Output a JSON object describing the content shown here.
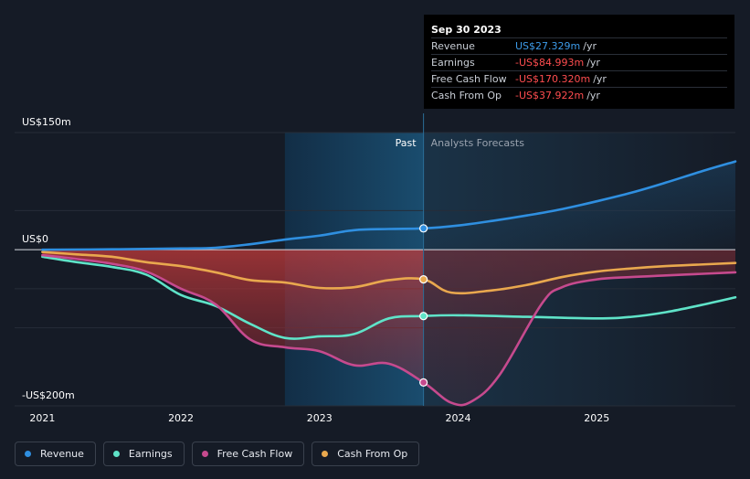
{
  "tooltip": {
    "date": "Sep 30 2023",
    "rows": [
      {
        "label": "Revenue",
        "value": "US$27.329m",
        "unit": "/yr",
        "color": "#3d9be9"
      },
      {
        "label": "Earnings",
        "value": "-US$84.993m",
        "unit": "/yr",
        "color": "#ff4d4f"
      },
      {
        "label": "Free Cash Flow",
        "value": "-US$170.320m",
        "unit": "/yr",
        "color": "#ff4d4f"
      },
      {
        "label": "Cash From Op",
        "value": "-US$37.922m",
        "unit": "/yr",
        "color": "#ff4d4f"
      }
    ]
  },
  "legend": [
    {
      "label": "Revenue",
      "color": "#2f8fe0"
    },
    {
      "label": "Earnings",
      "color": "#5fe3c8"
    },
    {
      "label": "Free Cash Flow",
      "color": "#c64a8e"
    },
    {
      "label": "Cash From Op",
      "color": "#e9a84e"
    }
  ],
  "chart_data": {
    "type": "line",
    "title": "",
    "xlabel": "",
    "ylabel": "",
    "x_ticks": [
      {
        "label": "2021",
        "x": 2021.0
      },
      {
        "label": "2022",
        "x": 2022.0
      },
      {
        "label": "2023",
        "x": 2023.0
      },
      {
        "label": "2024",
        "x": 2024.0
      },
      {
        "label": "2025",
        "x": 2025.0
      }
    ],
    "y_ticks": [
      {
        "label": "US$150m",
        "y": 150
      },
      {
        "label": "US$0",
        "y": 0
      },
      {
        "label": "-US$200m",
        "y": -200
      }
    ],
    "xlim": [
      2020.8,
      2026.0
    ],
    "ylim": [
      -200,
      150
    ],
    "past_label": "Past",
    "forecast_label": "Analysts Forecasts",
    "past_start": 2022.75,
    "divider_x": 2023.75,
    "series": [
      {
        "name": "Revenue",
        "color": "#2f8fe0",
        "x": [
          2021.0,
          2021.5,
          2022.0,
          2022.25,
          2022.5,
          2022.75,
          2023.0,
          2023.25,
          2023.5,
          2023.75,
          2024.0,
          2024.25,
          2024.5,
          2024.75,
          2025.0,
          2025.25,
          2025.5,
          2025.75,
          2026.0
        ],
        "y": [
          0,
          0.5,
          1.5,
          2.5,
          7,
          13,
          18,
          25,
          26.5,
          27.3,
          31,
          37,
          44,
          52,
          62,
          73,
          86,
          100,
          113
        ]
      },
      {
        "name": "Earnings",
        "color": "#5fe3c8",
        "x": [
          2021.0,
          2021.25,
          2021.5,
          2021.75,
          2022.0,
          2022.25,
          2022.5,
          2022.75,
          2023.0,
          2023.25,
          2023.5,
          2023.75,
          2024.0,
          2024.5,
          2025.0,
          2025.25,
          2025.5,
          2025.75,
          2026.0
        ],
        "y": [
          -9,
          -16,
          -22,
          -32,
          -58,
          -72,
          -95,
          -113,
          -111,
          -108,
          -88,
          -85,
          -84,
          -86,
          -88,
          -86,
          -80,
          -71,
          -61
        ]
      },
      {
        "name": "Free Cash Flow",
        "color": "#c64a8e",
        "x": [
          2021.0,
          2021.25,
          2021.5,
          2021.75,
          2022.0,
          2022.25,
          2022.5,
          2022.75,
          2023.0,
          2023.25,
          2023.5,
          2023.75,
          2023.95,
          2024.1,
          2024.3,
          2024.6,
          2024.75,
          2025.0,
          2025.25,
          2025.5,
          2025.75,
          2026.0
        ],
        "y": [
          -7,
          -12,
          -18,
          -28,
          -50,
          -70,
          -115,
          -125,
          -130,
          -148,
          -146,
          -170,
          -196,
          -194,
          -160,
          -70,
          -48,
          -38,
          -35,
          -33,
          -31,
          -29
        ]
      },
      {
        "name": "Cash From Op",
        "color": "#e9a84e",
        "x": [
          2021.0,
          2021.25,
          2021.5,
          2021.75,
          2022.0,
          2022.25,
          2022.5,
          2022.75,
          2023.0,
          2023.25,
          2023.5,
          2023.75,
          2023.95,
          2024.25,
          2024.5,
          2024.75,
          2025.0,
          2025.25,
          2025.5,
          2025.75,
          2026.0
        ],
        "y": [
          -3,
          -6,
          -9,
          -16,
          -21,
          -29,
          -39,
          -42,
          -49,
          -48,
          -39,
          -38,
          -55,
          -52,
          -45,
          -35,
          -28,
          -24,
          -21,
          -19,
          -17
        ]
      }
    ]
  }
}
